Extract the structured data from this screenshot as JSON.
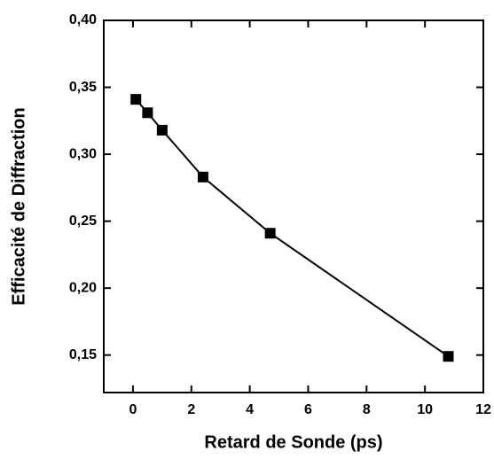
{
  "chart_data": {
    "type": "line",
    "x_label": "Retard de Sonde (ps)",
    "y_label": "Efficacité de Diffraction",
    "x": [
      0.1,
      0.5,
      1.0,
      2.4,
      4.7,
      10.8
    ],
    "series": [
      {
        "color": "#000000",
        "values": [
          0.341,
          0.331,
          0.318,
          0.283,
          0.241,
          0.149
        ]
      }
    ],
    "markers": "square",
    "xlim": [
      -1,
      12
    ],
    "xticks": [
      0,
      2,
      4,
      6,
      8,
      10,
      12
    ],
    "ylim": [
      0.122,
      0.4
    ],
    "yticks": [
      {
        "value": 0.15,
        "label": "0,15"
      },
      {
        "value": 0.2,
        "label": "0,20"
      },
      {
        "value": 0.25,
        "label": "0,25"
      },
      {
        "value": 0.3,
        "label": "0,30"
      },
      {
        "value": 0.35,
        "label": "0,35"
      },
      {
        "value": 0.4,
        "label": "0,40"
      }
    ]
  }
}
